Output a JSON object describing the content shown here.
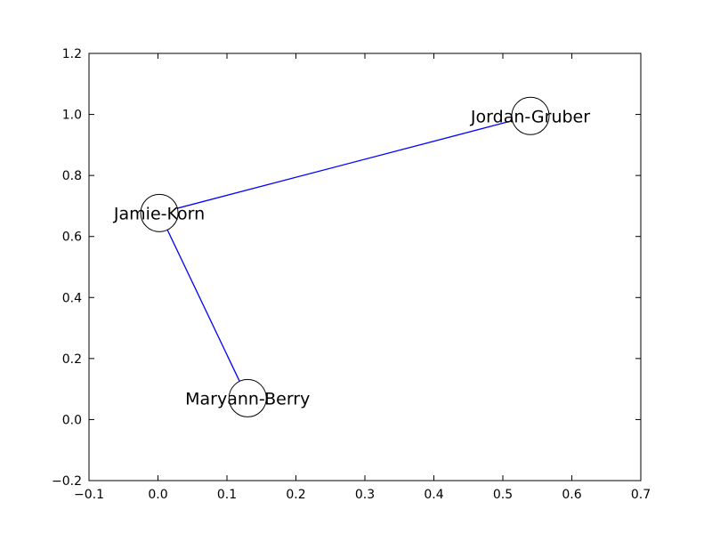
{
  "chart_data": {
    "type": "scatter",
    "title": "",
    "xlabel": "",
    "ylabel": "",
    "xlim": [
      -0.1,
      0.7
    ],
    "ylim": [
      -0.2,
      1.2
    ],
    "xticks": [
      -0.1,
      0.0,
      0.1,
      0.2,
      0.3,
      0.4,
      0.5,
      0.6,
      0.7
    ],
    "xtick_labels": [
      "−0.1",
      "0.0",
      "0.1",
      "0.2",
      "0.3",
      "0.4",
      "0.5",
      "0.6",
      "0.7"
    ],
    "yticks": [
      -0.2,
      0.0,
      0.2,
      0.4,
      0.6,
      0.8,
      1.0,
      1.2
    ],
    "ytick_labels": [
      "−0.2",
      "0.0",
      "0.2",
      "0.4",
      "0.6",
      "0.8",
      "1.0",
      "1.2"
    ],
    "grid": false,
    "nodes": [
      {
        "id": "jordan-gruber",
        "label": "Jordan-Gruber",
        "x": 0.54,
        "y": 0.995
      },
      {
        "id": "jamie-korn",
        "label": "Jamie-Korn",
        "x": 0.002,
        "y": 0.677
      },
      {
        "id": "maryann-berry",
        "label": "Maryann-Berry",
        "x": 0.13,
        "y": 0.07
      }
    ],
    "edges": [
      {
        "source": "jamie-korn",
        "target": "jordan-gruber"
      },
      {
        "source": "jamie-korn",
        "target": "maryann-berry"
      }
    ],
    "edge_color": "#0000ff",
    "node_face_color": "#ffffff",
    "node_edge_color": "#000000"
  }
}
